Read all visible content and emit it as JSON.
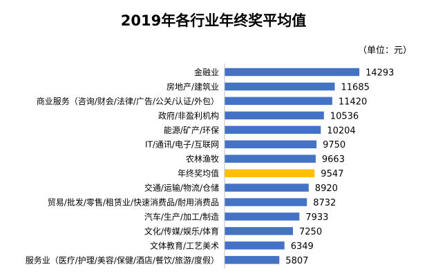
{
  "title": "2019年各行业年终奖平均值",
  "unit_label": "（单位：元）",
  "colors": {
    "bar": "#4472C4",
    "highlight": "#FFC000",
    "axis": "#BFBFBF"
  },
  "chart_data": {
    "type": "bar",
    "orientation": "horizontal",
    "title": "2019年各行业年终奖平均值",
    "xlabel": "",
    "ylabel": "",
    "unit": "元",
    "xlim": [
      0,
      15000
    ],
    "grid": false,
    "legend": "none",
    "highlight_index": 7,
    "categories": [
      "金融业",
      "房地产/建筑业",
      "商业服务（咨询/财会/法律/广告/公关/认证/外包）",
      "政府/非盈利机构",
      "能源/矿产/环保",
      "IT/通讯/电子/互联网",
      "农林渔牧",
      "年终奖均值",
      "交通/运输/物流/仓储",
      "贸易/批发/零售/租赁业/快速消费品/耐用消费品",
      "汽车/生产/加工/制造",
      "文化/传媒/娱乐/体育",
      "文体教育/工艺美术",
      "服务业（医疗/护理/美容/保健/酒店/餐饮/旅游/度假）"
    ],
    "values": [
      14293,
      11685,
      11420,
      10536,
      10204,
      9750,
      9663,
      9547,
      8920,
      8732,
      7933,
      7250,
      6349,
      5807
    ]
  }
}
